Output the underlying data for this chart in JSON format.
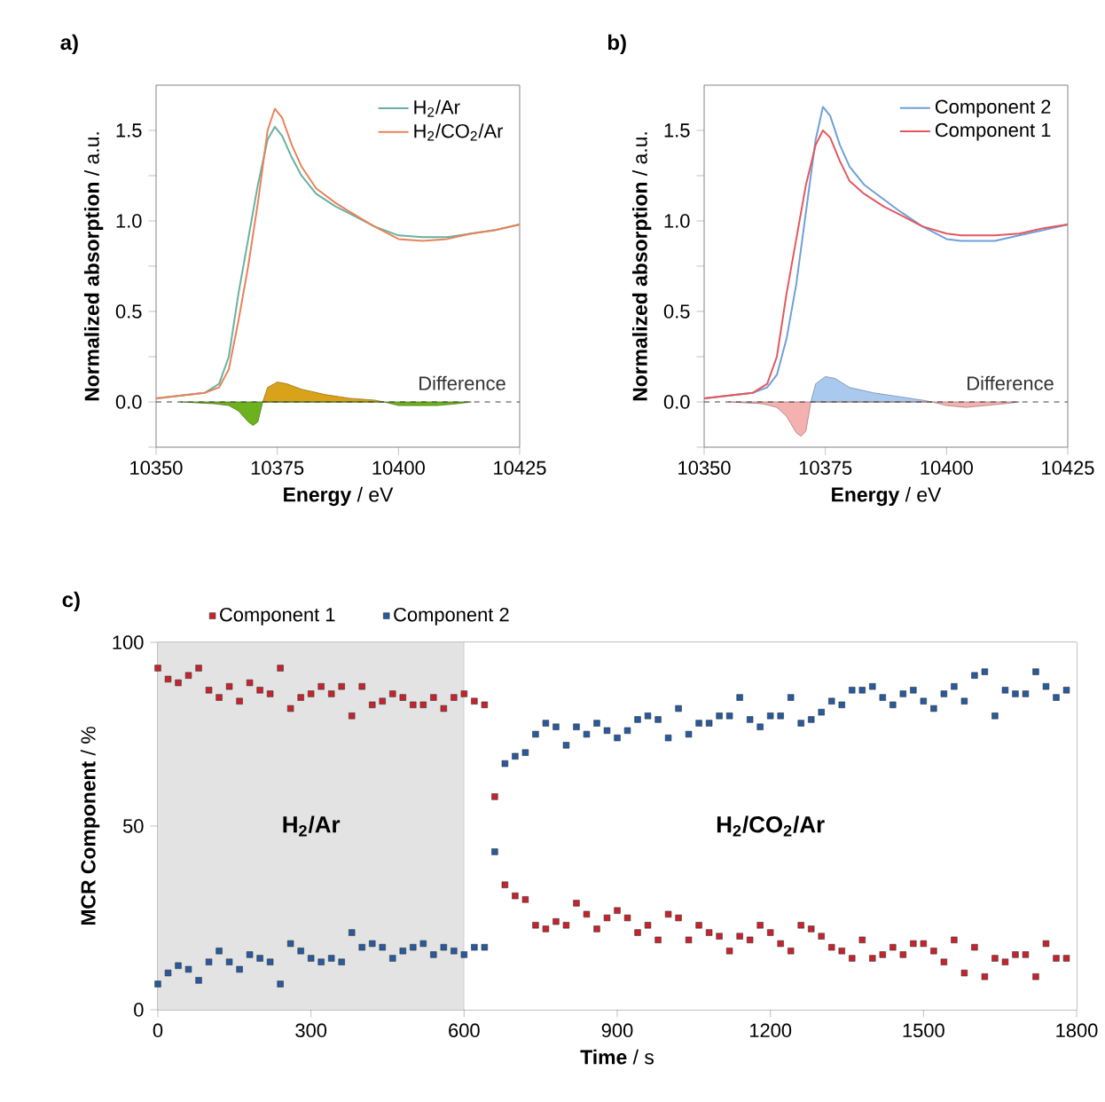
{
  "chart_data": [
    {
      "type": "line",
      "title": "a)",
      "xlabel": "**Energy** / eV",
      "ylabel": "**Normalized absorption** / a.u.",
      "xlim": [
        10350,
        10425
      ],
      "ylim": [
        -0.25,
        1.75
      ],
      "xticks": [
        10350,
        10375,
        10400,
        10425
      ],
      "yticks": [
        {
          "value": -0.25,
          "label": null
        },
        {
          "value": 0,
          "label": "0.0"
        },
        {
          "value": 0.25,
          "label": null
        },
        {
          "value": 0.5,
          "label": "0.5"
        },
        {
          "value": 0.75,
          "label": null
        },
        {
          "value": 1,
          "label": "1.0"
        },
        {
          "value": 1.25,
          "label": null
        },
        {
          "value": 1.5,
          "label": "1.5"
        }
      ],
      "legend": "top right",
      "series": [
        {
          "name": "H$_{2}$/Ar",
          "color": "#66b2a0",
          "x": [
            10350,
            10360,
            10363,
            10365,
            10367,
            10369,
            10371,
            10373,
            10374.5,
            10376,
            10378,
            10380,
            10383,
            10387,
            10390,
            10395,
            10400,
            10405,
            10410,
            10415,
            10420,
            10425
          ],
          "values": [
            0.02,
            0.05,
            0.1,
            0.25,
            0.6,
            0.9,
            1.2,
            1.45,
            1.52,
            1.47,
            1.35,
            1.25,
            1.15,
            1.08,
            1.04,
            0.97,
            0.92,
            0.91,
            0.91,
            0.93,
            0.95,
            0.98
          ]
        },
        {
          "name": "H$_{2}$/CO$_{2}$/Ar",
          "color": "#e8825a",
          "x": [
            10350,
            10360,
            10363,
            10365,
            10367,
            10369,
            10371,
            10373,
            10374.5,
            10376,
            10378,
            10380,
            10383,
            10387,
            10390,
            10395,
            10400,
            10405,
            10410,
            10415,
            10420,
            10425
          ],
          "values": [
            0.02,
            0.05,
            0.08,
            0.18,
            0.45,
            0.75,
            1.1,
            1.5,
            1.62,
            1.57,
            1.42,
            1.3,
            1.18,
            1.1,
            1.05,
            0.97,
            0.9,
            0.89,
            0.9,
            0.93,
            0.95,
            0.98
          ]
        },
        {
          "type": "area",
          "color": "#d9a21b",
          "x": [
            10372,
            10373,
            10375,
            10377,
            10380,
            10385,
            10390,
            10395,
            10397
          ],
          "values": [
            0,
            0.08,
            0.11,
            0.1,
            0.07,
            0.04,
            0.02,
            0.01,
            0
          ]
        },
        {
          "type": "area",
          "color": "#6cb21f",
          "x": [
            10355,
            10362,
            10365,
            10367,
            10369,
            10370,
            10371,
            10372,
            10397,
            10400,
            10404,
            10408,
            10412,
            10415
          ],
          "values": [
            0,
            -0.01,
            -0.02,
            -0.05,
            -0.11,
            -0.13,
            -0.11,
            0,
            0,
            -0.02,
            -0.02,
            -0.02,
            -0.01,
            0
          ]
        }
      ],
      "ref_lines": [
        {
          "axis": "y",
          "value": 0,
          "color": "#404040",
          "line_style": "dashed"
        }
      ],
      "annotations": [
        "Difference"
      ]
    },
    {
      "type": "line",
      "title": "b)",
      "xlabel": "**Energy** / eV",
      "ylabel": "**Normalized absorption** / a.u.",
      "xlim": [
        10350,
        10425
      ],
      "ylim": [
        -0.25,
        1.75
      ],
      "xticks": [
        10350,
        10375,
        10400,
        10425
      ],
      "yticks": [
        {
          "value": -0.25,
          "label": null
        },
        {
          "value": 0,
          "label": "0.0"
        },
        {
          "value": 0.25,
          "label": null
        },
        {
          "value": 0.5,
          "label": "0.5"
        },
        {
          "value": 0.75,
          "label": null
        },
        {
          "value": 1,
          "label": "1.0"
        },
        {
          "value": 1.25,
          "label": null
        },
        {
          "value": 1.5,
          "label": "1.5"
        }
      ],
      "legend": "top right",
      "series": [
        {
          "name": "Component 2",
          "color": "#6f9fd8",
          "x": [
            10350,
            10360,
            10363,
            10365,
            10367,
            10369,
            10371,
            10373,
            10374.5,
            10376,
            10378,
            10380,
            10383,
            10387,
            10390,
            10395,
            10400,
            10403,
            10410,
            10415,
            10420,
            10425
          ],
          "values": [
            0.02,
            0.05,
            0.08,
            0.15,
            0.35,
            0.65,
            1.05,
            1.45,
            1.63,
            1.58,
            1.42,
            1.3,
            1.2,
            1.12,
            1.06,
            0.97,
            0.9,
            0.89,
            0.89,
            0.92,
            0.95,
            0.98
          ]
        },
        {
          "name": "Component 1",
          "color": "#e3585e",
          "x": [
            10350,
            10360,
            10363,
            10365,
            10367,
            10369,
            10371,
            10373,
            10374.5,
            10376,
            10378,
            10380,
            10383,
            10387,
            10390,
            10395,
            10400,
            10403,
            10410,
            10415,
            10420,
            10425
          ],
          "values": [
            0.02,
            0.05,
            0.1,
            0.25,
            0.6,
            0.9,
            1.2,
            1.42,
            1.5,
            1.46,
            1.33,
            1.22,
            1.15,
            1.08,
            1.04,
            0.97,
            0.93,
            0.92,
            0.92,
            0.93,
            0.96,
            0.98
          ]
        },
        {
          "type": "area",
          "color": "#a9c9ef",
          "x": [
            10372,
            10373,
            10375,
            10377,
            10380,
            10385,
            10390,
            10395,
            10397
          ],
          "values": [
            0,
            0.1,
            0.14,
            0.13,
            0.08,
            0.05,
            0.03,
            0.01,
            0
          ]
        },
        {
          "type": "area",
          "color": "#f5b0b0",
          "x": [
            10355,
            10362,
            10365,
            10367,
            10369,
            10370,
            10371,
            10372,
            10397,
            10400,
            10404,
            10408,
            10412,
            10415
          ],
          "values": [
            0,
            -0.01,
            -0.03,
            -0.08,
            -0.17,
            -0.19,
            -0.16,
            0,
            0,
            -0.02,
            -0.03,
            -0.02,
            -0.01,
            0
          ]
        }
      ],
      "ref_lines": [
        {
          "axis": "y",
          "value": 0,
          "color": "#404040",
          "line_style": "dashed"
        }
      ],
      "annotations": [
        "Difference"
      ]
    },
    {
      "type": "scatter",
      "title": "c)",
      "xlabel": "**Time** / s",
      "ylabel": "**MCR Component** / %",
      "xlim": [
        0,
        1800
      ],
      "ylim": [
        0,
        100
      ],
      "xticks": [
        0,
        300,
        600,
        900,
        1200,
        1500,
        1800
      ],
      "yticks": [
        0,
        50,
        100
      ],
      "legend": "top",
      "marker": "square",
      "x": [
        0,
        20,
        40,
        60,
        80,
        100,
        120,
        140,
        160,
        180,
        200,
        220,
        240,
        260,
        280,
        300,
        320,
        340,
        360,
        380,
        400,
        420,
        440,
        460,
        480,
        500,
        520,
        540,
        560,
        580,
        600,
        620,
        640,
        660,
        680,
        700,
        720,
        740,
        760,
        780,
        800,
        820,
        840,
        860,
        880,
        900,
        920,
        940,
        960,
        980,
        1000,
        1020,
        1040,
        1060,
        1080,
        1100,
        1120,
        1140,
        1160,
        1180,
        1200,
        1220,
        1240,
        1260,
        1280,
        1300,
        1320,
        1340,
        1360,
        1380,
        1400,
        1420,
        1440,
        1460,
        1480,
        1500,
        1520,
        1540,
        1560,
        1580,
        1600,
        1620,
        1640,
        1660,
        1680,
        1700,
        1720,
        1740,
        1760,
        1780
      ],
      "series": [
        {
          "name": "Component 1",
          "color": "#c8232c",
          "values": [
            93,
            90,
            89,
            91,
            93,
            87,
            85,
            88,
            84,
            89,
            87,
            86,
            93,
            82,
            85,
            86,
            88,
            86,
            88,
            80,
            88,
            83,
            84,
            86,
            85,
            83,
            83,
            85,
            82,
            85,
            86,
            84,
            83,
            58,
            34,
            31,
            30,
            23,
            22,
            24,
            23,
            29,
            26,
            22,
            25,
            27,
            25,
            21,
            23,
            19,
            26,
            25,
            19,
            23,
            21,
            20,
            16,
            20,
            19,
            23,
            21,
            18,
            16,
            23,
            22,
            20,
            17,
            16,
            14,
            19,
            14,
            15,
            17,
            15,
            18,
            18,
            16,
            13,
            19,
            10,
            17,
            9,
            14,
            13,
            15,
            15,
            9,
            18,
            14,
            14
          ]
        },
        {
          "name": "Component 2",
          "color": "#275a9e",
          "values": [
            7,
            10,
            12,
            11,
            8,
            13,
            16,
            13,
            11,
            15,
            14,
            13,
            7,
            18,
            16,
            14,
            13,
            14,
            13,
            21,
            17,
            18,
            17,
            14,
            16,
            17,
            18,
            15,
            17,
            16,
            15,
            17,
            17,
            43,
            67,
            69,
            70,
            75,
            78,
            77,
            72,
            77,
            75,
            78,
            76,
            74,
            76,
            79,
            80,
            79,
            74,
            82,
            75,
            78,
            78,
            80,
            80,
            85,
            79,
            77,
            80,
            80,
            85,
            78,
            79,
            81,
            84,
            83,
            87,
            87,
            88,
            85,
            83,
            86,
            87,
            84,
            82,
            86,
            88,
            84,
            91,
            92,
            80,
            87,
            86,
            86,
            92,
            88,
            85,
            87
          ]
        }
      ],
      "bands": [
        {
          "axis": "x",
          "from": 0,
          "to": 600,
          "label": "H$_{2}$/Ar",
          "color": "#e3e3e3"
        },
        {
          "axis": "x",
          "from": 600,
          "to": 1800,
          "label": "H$_{2}$/CO$_{2}$/Ar",
          "color": "#ffffff"
        }
      ]
    }
  ]
}
